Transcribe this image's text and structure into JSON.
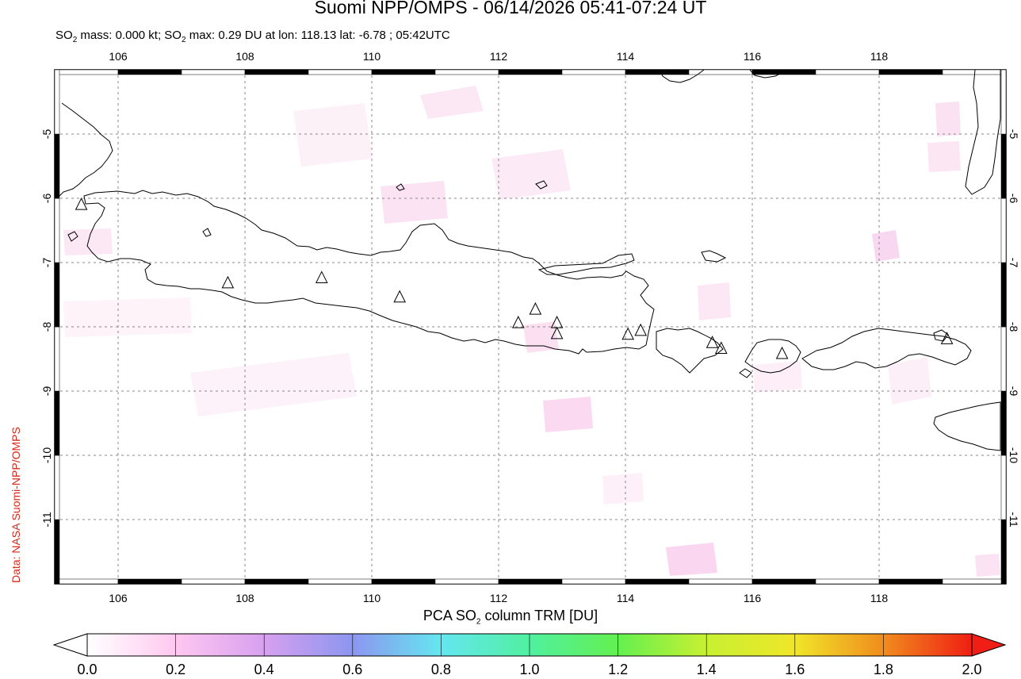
{
  "header": {
    "title": "Suomi NPP/OMPS - 06/14/2026 05:41-07:24 UT",
    "subtitle_prefix": "SO",
    "subtitle_sub": "2",
    "subtitle_mid": " mass: 0.000 kt; SO",
    "subtitle_sub2": "2",
    "subtitle_rest": " max: 0.29 DU at lon: 118.13 lat: -6.78 ; 05:42UTC"
  },
  "side_label": "Data: NASA Suomi-NPP/OMPS",
  "map": {
    "lon_range": [
      105.0,
      120.0
    ],
    "lat_range": [
      -12.0,
      -4.0
    ],
    "lon_ticks": [
      "106",
      "108",
      "110",
      "112",
      "114",
      "116",
      "118"
    ],
    "lat_ticks": [
      "-5",
      "-6",
      "-7",
      "-8",
      "-9",
      "-10",
      "-11"
    ],
    "volcanoes": [
      {
        "lon": 105.42,
        "lat": -6.1
      },
      {
        "lon": 107.73,
        "lat": -7.32
      },
      {
        "lon": 109.21,
        "lat": -7.24
      },
      {
        "lon": 110.44,
        "lat": -7.54
      },
      {
        "lon": 112.31,
        "lat": -7.94
      },
      {
        "lon": 112.58,
        "lat": -7.73
      },
      {
        "lon": 112.92,
        "lat": -7.94
      },
      {
        "lon": 112.92,
        "lat": -8.11
      },
      {
        "lon": 114.04,
        "lat": -8.12
      },
      {
        "lon": 114.24,
        "lat": -8.06
      },
      {
        "lon": 115.37,
        "lat": -8.25
      },
      {
        "lon": 115.51,
        "lat": -8.34
      },
      {
        "lon": 116.47,
        "lat": -8.42
      },
      {
        "lon": 119.07,
        "lat": -8.19
      }
    ],
    "max_location": {
      "lon": 118.13,
      "lat": -6.78
    },
    "colors": {
      "coast": "#000000",
      "grid": "#888888",
      "volcano": "#000000"
    }
  },
  "colorbar": {
    "title_prefix": "PCA SO",
    "title_sub": "2",
    "title_rest": " column TRM [DU]",
    "range": [
      0.0,
      2.0
    ],
    "ticks": [
      "0.0",
      "0.2",
      "0.4",
      "0.6",
      "0.8",
      "1.0",
      "1.2",
      "1.4",
      "1.6",
      "1.8",
      "2.0"
    ],
    "stops": [
      "#ffffff",
      "#ffc8f0",
      "#d7a0f0",
      "#8c96f0",
      "#64e6f0",
      "#50f0a0",
      "#64f050",
      "#c8f032",
      "#f0e628",
      "#f08c1e",
      "#f01e14"
    ]
  }
}
